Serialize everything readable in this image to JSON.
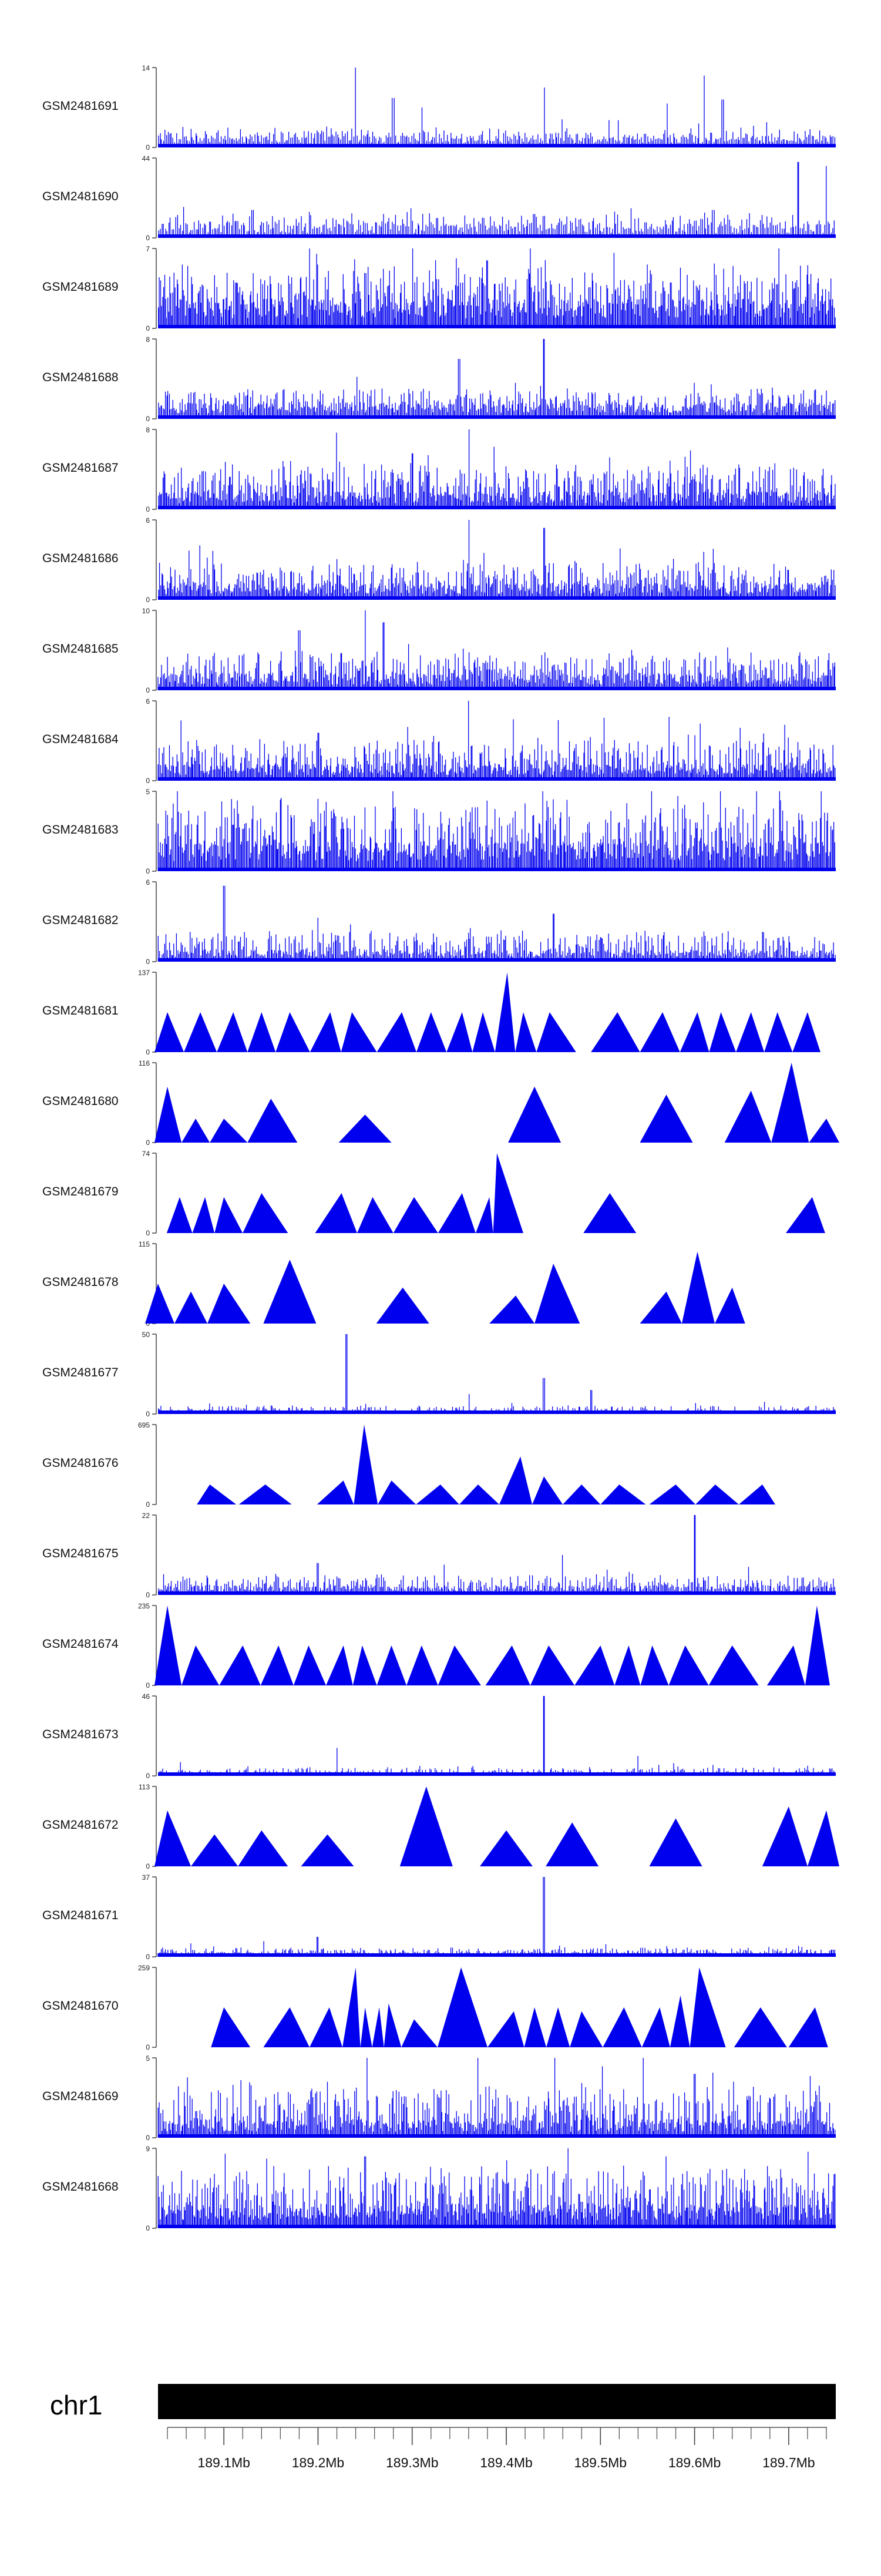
{
  "chart_data": {
    "type": "area",
    "title": "",
    "xlabel": "",
    "ylabel": "",
    "colors": {
      "signal": "#0000ee",
      "axis": "#444444",
      "chrom_bar": "#000000"
    },
    "chromosome": {
      "name": "chr1",
      "xlim_mb": [
        189.03,
        189.75
      ],
      "ticks_mb": [
        189.1,
        189.2,
        189.3,
        189.4,
        189.5,
        189.6,
        189.7
      ],
      "tick_labels": [
        "189.1Mb",
        "189.2Mb",
        "189.3Mb",
        "189.4Mb",
        "189.5Mb",
        "189.6Mb",
        "189.7Mb"
      ],
      "minor_tick_step_mb": 0.02
    },
    "tracks": [
      {
        "name": "GSM2481691",
        "ymax": "14",
        "ymin": "0",
        "style": "bars",
        "density": 420,
        "base": 0.1,
        "noise": 0.12,
        "peaks": [
          [
            189.24,
            1.0
          ],
          [
            189.28,
            0.62
          ],
          [
            189.31,
            0.5
          ],
          [
            189.44,
            0.75
          ],
          [
            189.57,
            0.55
          ],
          [
            189.61,
            0.9
          ],
          [
            189.63,
            0.6
          ]
        ]
      },
      {
        "name": "GSM2481690",
        "ymax": "44",
        "ymin": "0",
        "style": "bars",
        "density": 400,
        "base": 0.12,
        "noise": 0.16,
        "peaks": [
          [
            189.13,
            0.35
          ],
          [
            189.27,
            0.3
          ],
          [
            189.43,
            0.3
          ],
          [
            189.62,
            0.35
          ],
          [
            189.71,
            0.95
          ],
          [
            189.74,
            0.9
          ]
        ]
      },
      {
        "name": "GSM2481689",
        "ymax": "7",
        "ymin": "0",
        "style": "bars",
        "density": 650,
        "base": 0.25,
        "noise": 0.45,
        "peaks": [
          [
            189.2,
            0.8
          ],
          [
            189.38,
            0.85
          ],
          [
            189.55,
            0.8
          ]
        ]
      },
      {
        "name": "GSM2481688",
        "ymax": "8",
        "ymin": "0",
        "style": "bars",
        "density": 560,
        "base": 0.14,
        "noise": 0.2,
        "peaks": [
          [
            189.35,
            0.75
          ],
          [
            189.44,
            1.0
          ],
          [
            189.6,
            0.45
          ]
        ]
      },
      {
        "name": "GSM2481687",
        "ymax": "8",
        "ymin": "0",
        "style": "bars",
        "density": 620,
        "base": 0.15,
        "noise": 0.38,
        "peaks": [
          [
            189.36,
            1.0
          ],
          [
            189.3,
            0.7
          ],
          [
            189.51,
            0.65
          ]
        ]
      },
      {
        "name": "GSM2481686",
        "ymax": "6",
        "ymin": "0",
        "style": "bars",
        "density": 600,
        "base": 0.14,
        "noise": 0.3,
        "peaks": [
          [
            189.36,
            1.0
          ],
          [
            189.44,
            0.9
          ],
          [
            189.61,
            0.6
          ]
        ]
      },
      {
        "name": "GSM2481685",
        "ymax": "10",
        "ymin": "0",
        "style": "bars",
        "density": 580,
        "base": 0.14,
        "noise": 0.3,
        "peaks": [
          [
            189.25,
            1.0
          ],
          [
            189.27,
            0.85
          ],
          [
            189.18,
            0.75
          ]
        ]
      },
      {
        "name": "GSM2481684",
        "ymax": "6",
        "ymin": "0",
        "style": "bars",
        "density": 620,
        "base": 0.14,
        "noise": 0.35,
        "peaks": [
          [
            189.36,
            1.0
          ],
          [
            189.2,
            0.6
          ]
        ]
      },
      {
        "name": "GSM2481683",
        "ymax": "5",
        "ymin": "0",
        "style": "bars",
        "density": 650,
        "base": 0.25,
        "noise": 0.55,
        "peaks": [
          [
            189.05,
            1.0
          ],
          [
            189.45,
            0.9
          ]
        ]
      },
      {
        "name": "GSM2481682",
        "ymax": "6",
        "ymin": "0",
        "style": "bars",
        "density": 560,
        "base": 0.1,
        "noise": 0.25,
        "peaks": [
          [
            189.1,
            0.95
          ],
          [
            189.2,
            0.55
          ],
          [
            189.45,
            0.6
          ]
        ]
      },
      {
        "name": "GSM2481681",
        "ymax": "137",
        "ymin": "0",
        "style": "tri",
        "peaks": [
          [
            189.04,
            0.5
          ],
          [
            189.075,
            0.5
          ],
          [
            189.11,
            0.5
          ],
          [
            189.14,
            0.5
          ],
          [
            189.17,
            0.5
          ],
          [
            189.213,
            0.5
          ],
          [
            189.236,
            0.5
          ],
          [
            189.289,
            0.5
          ],
          [
            189.32,
            0.5
          ],
          [
            189.353,
            0.5
          ],
          [
            189.375,
            0.5
          ],
          [
            189.401,
            1.0
          ],
          [
            189.418,
            0.5
          ],
          [
            189.446,
            0.5
          ],
          [
            189.518,
            0.5
          ],
          [
            189.566,
            0.5
          ],
          [
            189.603,
            0.5
          ],
          [
            189.628,
            0.5
          ],
          [
            189.66,
            0.5
          ],
          [
            189.688,
            0.5
          ],
          [
            189.72,
            0.5
          ]
        ]
      },
      {
        "name": "GSM2481680",
        "ymax": "116",
        "ymin": "0",
        "style": "tri",
        "peaks": [
          [
            189.04,
            0.7
          ],
          [
            189.07,
            0.3
          ],
          [
            189.1,
            0.3
          ],
          [
            189.15,
            0.55
          ],
          [
            189.25,
            0.35
          ],
          [
            189.43,
            0.7
          ],
          [
            189.57,
            0.6
          ],
          [
            189.66,
            0.65
          ],
          [
            189.703,
            1.0
          ],
          [
            189.74,
            0.3
          ]
        ]
      },
      {
        "name": "GSM2481679",
        "ymax": "74",
        "ymin": "0",
        "style": "tri",
        "peaks": [
          [
            189.053,
            0.45
          ],
          [
            189.08,
            0.45
          ],
          [
            189.1,
            0.45
          ],
          [
            189.14,
            0.5
          ],
          [
            189.225,
            0.5
          ],
          [
            189.258,
            0.45
          ],
          [
            189.302,
            0.45
          ],
          [
            189.353,
            0.5
          ],
          [
            189.382,
            0.45
          ],
          [
            189.39,
            1.0
          ],
          [
            189.51,
            0.5
          ],
          [
            189.725,
            0.45
          ]
        ]
      },
      {
        "name": "GSM2481678",
        "ymax": "115",
        "ymin": "0",
        "style": "tri",
        "peaks": [
          [
            189.03,
            0.5
          ],
          [
            189.065,
            0.4
          ],
          [
            189.1,
            0.5
          ],
          [
            189.17,
            0.8
          ],
          [
            189.29,
            0.45
          ],
          [
            189.41,
            0.35
          ],
          [
            189.45,
            0.75
          ],
          [
            189.57,
            0.4
          ],
          [
            189.603,
            0.9
          ],
          [
            189.64,
            0.45
          ]
        ]
      },
      {
        "name": "GSM2481677",
        "ymax": "50",
        "ymin": "0",
        "style": "bars",
        "density": 500,
        "base": 0.02,
        "noise": 0.08,
        "peaks": [
          [
            189.23,
            1.0
          ],
          [
            189.44,
            0.45
          ],
          [
            189.49,
            0.3
          ],
          [
            189.36,
            0.25
          ]
        ]
      },
      {
        "name": "GSM2481676",
        "ymax": "695",
        "ymin": "0",
        "style": "tri",
        "peaks": [
          [
            189.085,
            0.25
          ],
          [
            189.144,
            0.25
          ],
          [
            189.227,
            0.3
          ],
          [
            189.249,
            1.0
          ],
          [
            189.278,
            0.3
          ],
          [
            189.33,
            0.25
          ],
          [
            189.37,
            0.25
          ],
          [
            189.415,
            0.6
          ],
          [
            189.44,
            0.35
          ],
          [
            189.48,
            0.25
          ],
          [
            189.52,
            0.25
          ],
          [
            189.58,
            0.25
          ],
          [
            189.622,
            0.25
          ],
          [
            189.672,
            0.25
          ]
        ]
      },
      {
        "name": "GSM2481675",
        "ymax": "22",
        "ymin": "0",
        "style": "bars",
        "density": 520,
        "base": 0.08,
        "noise": 0.15,
        "peaks": [
          [
            189.6,
            1.0
          ],
          [
            189.46,
            0.5
          ],
          [
            189.2,
            0.4
          ]
        ]
      },
      {
        "name": "GSM2481674",
        "ymax": "235",
        "ymin": "0",
        "style": "tri",
        "peaks": [
          [
            189.04,
            1.0
          ],
          [
            189.07,
            0.5
          ],
          [
            189.12,
            0.5
          ],
          [
            189.158,
            0.5
          ],
          [
            189.19,
            0.5
          ],
          [
            189.227,
            0.5
          ],
          [
            189.247,
            0.5
          ],
          [
            189.278,
            0.5
          ],
          [
            189.31,
            0.5
          ],
          [
            189.345,
            0.5
          ],
          [
            189.406,
            0.5
          ],
          [
            189.445,
            0.5
          ],
          [
            189.5,
            0.5
          ],
          [
            189.53,
            0.5
          ],
          [
            189.555,
            0.5
          ],
          [
            189.59,
            0.5
          ],
          [
            189.64,
            0.5
          ],
          [
            189.705,
            0.5
          ],
          [
            189.73,
            1.0
          ]
        ]
      },
      {
        "name": "GSM2481673",
        "ymax": "46",
        "ymin": "0",
        "style": "bars",
        "density": 500,
        "base": 0.03,
        "noise": 0.07,
        "peaks": [
          [
            189.44,
            1.0
          ],
          [
            189.22,
            0.35
          ],
          [
            189.54,
            0.25
          ]
        ]
      },
      {
        "name": "GSM2481672",
        "ymax": "113",
        "ymin": "0",
        "style": "tri",
        "peaks": [
          [
            189.04,
            0.7
          ],
          [
            189.09,
            0.4
          ],
          [
            189.14,
            0.45
          ],
          [
            189.21,
            0.4
          ],
          [
            189.315,
            1.0
          ],
          [
            189.4,
            0.45
          ],
          [
            189.47,
            0.55
          ],
          [
            189.58,
            0.6
          ],
          [
            189.7,
            0.75
          ],
          [
            189.74,
            0.7
          ]
        ]
      },
      {
        "name": "GSM2481671",
        "ymax": "37",
        "ymin": "0",
        "style": "bars",
        "density": 500,
        "base": 0.04,
        "noise": 0.07,
        "peaks": [
          [
            189.44,
            1.0
          ],
          [
            189.2,
            0.25
          ]
        ]
      },
      {
        "name": "GSM2481670",
        "ymax": "259",
        "ymin": "0",
        "style": "tri",
        "peaks": [
          [
            189.1,
            0.5
          ],
          [
            189.17,
            0.5
          ],
          [
            189.212,
            0.5
          ],
          [
            189.24,
            1.0
          ],
          [
            189.25,
            0.5
          ],
          [
            189.265,
            0.5
          ],
          [
            189.275,
            0.55
          ],
          [
            189.302,
            0.35
          ],
          [
            189.352,
            1.0
          ],
          [
            189.408,
            0.45
          ],
          [
            189.43,
            0.5
          ],
          [
            189.455,
            0.5
          ],
          [
            189.48,
            0.45
          ],
          [
            189.525,
            0.5
          ],
          [
            189.563,
            0.5
          ],
          [
            189.585,
            0.65
          ],
          [
            189.605,
            1.0
          ],
          [
            189.67,
            0.5
          ],
          [
            189.728,
            0.5
          ]
        ]
      },
      {
        "name": "GSM2481669",
        "ymax": "5",
        "ymin": "0",
        "style": "bars",
        "density": 600,
        "base": 0.15,
        "noise": 0.45,
        "peaks": [
          [
            189.37,
            1.0
          ],
          [
            189.6,
            0.8
          ],
          [
            189.21,
            0.7
          ]
        ]
      },
      {
        "name": "GSM2481668",
        "ymax": "9",
        "ymin": "0",
        "style": "bars",
        "density": 650,
        "base": 0.2,
        "noise": 0.5,
        "peaks": [
          [
            189.25,
            0.9
          ],
          [
            189.4,
            0.85
          ],
          [
            189.57,
            0.9
          ]
        ]
      }
    ]
  }
}
